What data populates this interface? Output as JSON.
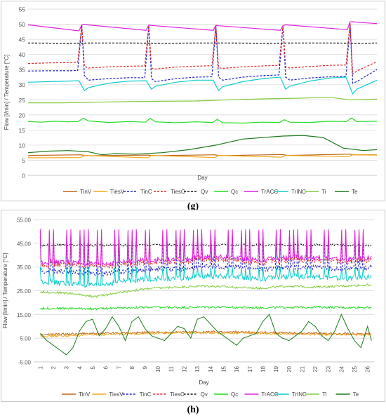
{
  "chart_data": [
    {
      "panel": "(g)",
      "type": "line",
      "xlabel": "Day",
      "ylabel": "Flow [l/min] / Temperature [°C]",
      "ylim": [
        0,
        55
      ],
      "yticks": [
        "0",
        "5",
        "10",
        "15",
        "20",
        "25",
        "30",
        "35",
        "40",
        "45",
        "50",
        "55"
      ],
      "xlim": [
        0,
        5.2
      ],
      "x_ticks_shown": false,
      "grid": "horizontal",
      "legend_position": "bottom",
      "series": [
        {
          "name": "TinV",
          "color": "#c0651c",
          "style": "solid",
          "x": [
            0,
            0.06,
            0.78,
            0.88,
            1.78,
            1.88,
            2.78,
            2.88,
            3.78,
            3.88,
            4.78,
            4.88,
            5.2
          ],
          "y": [
            6.5,
            6.6,
            6.8,
            6.5,
            6.7,
            6.5,
            6.8,
            6.5,
            6.9,
            6.6,
            7.0,
            6.8,
            6.8
          ]
        },
        {
          "name": "TiesV",
          "color": "#f2a81d",
          "style": "solid",
          "x": [
            0,
            0.05,
            0.78,
            0.84,
            1.78,
            1.84,
            2.78,
            2.84,
            3.78,
            3.84,
            4.78,
            4.84,
            5.2
          ],
          "y": [
            5.9,
            5.8,
            5.9,
            6.6,
            5.8,
            6.6,
            5.9,
            6.6,
            6.0,
            6.6,
            6.2,
            6.8,
            6.7
          ]
        },
        {
          "name": "TinC",
          "color": "#2020d0",
          "style": "dashed",
          "x": [
            0,
            0.3,
            0.6,
            0.74,
            0.8,
            0.84,
            0.9,
            1.2,
            1.5,
            1.74,
            1.8,
            1.84,
            1.9,
            2.2,
            2.5,
            2.74,
            2.8,
            2.84,
            2.9,
            3.2,
            3.5,
            3.74,
            3.8,
            3.84,
            3.9,
            4.2,
            4.5,
            4.74,
            4.8,
            4.84,
            4.9,
            5.2
          ],
          "y": [
            34.5,
            34.6,
            34.6,
            34.7,
            49.5,
            33.0,
            31.5,
            32.0,
            32.3,
            32.3,
            49.5,
            32.0,
            31.0,
            32.0,
            32.5,
            32.6,
            49.5,
            32.5,
            31.5,
            32.5,
            33.0,
            33.2,
            49.5,
            32.5,
            31.5,
            32.2,
            32.6,
            32.8,
            50.0,
            30.5,
            31.0,
            35.0
          ]
        },
        {
          "name": "TiesC",
          "color": "#e02828",
          "style": "dashed",
          "x": [
            0,
            0.3,
            0.6,
            0.74,
            0.8,
            0.84,
            0.9,
            1.2,
            1.5,
            1.74,
            1.8,
            1.84,
            1.9,
            2.2,
            2.5,
            2.74,
            2.8,
            2.84,
            2.9,
            3.2,
            3.5,
            3.74,
            3.8,
            3.84,
            3.9,
            4.2,
            4.5,
            4.74,
            4.8,
            4.84,
            4.9,
            5.2
          ],
          "y": [
            37.0,
            37.2,
            37.3,
            37.4,
            49.8,
            36.0,
            35.5,
            35.9,
            36.1,
            36.2,
            49.7,
            35.5,
            35.2,
            35.8,
            36.1,
            36.3,
            49.5,
            35.6,
            35.4,
            35.9,
            36.2,
            36.4,
            49.6,
            35.8,
            35.5,
            36.0,
            36.4,
            36.5,
            50.4,
            33.5,
            34.5,
            37.6
          ]
        },
        {
          "name": "Qv",
          "color": "#111111",
          "style": "dashed",
          "x": [
            0,
            0.5,
            1.0,
            1.5,
            2.0,
            2.5,
            3.0,
            3.5,
            4.0,
            4.5,
            5.0,
            5.2
          ],
          "y": [
            43.8,
            43.7,
            43.8,
            43.8,
            43.7,
            43.8,
            43.8,
            43.7,
            43.8,
            43.8,
            43.7,
            43.8
          ]
        },
        {
          "name": "Qc",
          "color": "#22dd22",
          "style": "solid",
          "x": [
            0,
            0.2,
            0.4,
            0.6,
            0.75,
            0.82,
            0.9,
            1.2,
            1.5,
            1.75,
            1.82,
            1.9,
            2.2,
            2.5,
            2.75,
            2.82,
            2.9,
            3.2,
            3.5,
            3.75,
            3.82,
            3.9,
            4.2,
            4.5,
            4.75,
            4.82,
            4.9,
            5.2
          ],
          "y": [
            17.8,
            17.6,
            17.9,
            17.7,
            17.8,
            18.9,
            18.0,
            17.5,
            17.8,
            17.6,
            18.9,
            17.7,
            17.4,
            17.7,
            17.5,
            18.5,
            17.4,
            17.3,
            17.6,
            17.5,
            18.4,
            17.6,
            17.5,
            17.9,
            17.8,
            19.0,
            17.8,
            17.9
          ]
        },
        {
          "name": "TrACC",
          "color": "#e020e0",
          "style": "solid",
          "x": [
            0,
            0.76,
            0.8,
            0.84,
            1.76,
            1.8,
            1.84,
            2.76,
            2.8,
            2.84,
            3.76,
            3.8,
            3.84,
            4.76,
            4.8,
            4.84,
            5.2
          ],
          "y": [
            49.8,
            47.8,
            49.8,
            49.9,
            48.0,
            49.7,
            49.6,
            48.0,
            49.6,
            49.5,
            48.0,
            49.5,
            49.8,
            48.2,
            50.8,
            50.8,
            50.2
          ]
        },
        {
          "name": "TrINC",
          "color": "#10cccc",
          "style": "solid",
          "x": [
            0,
            0.3,
            0.6,
            0.76,
            0.84,
            0.9,
            1.2,
            1.5,
            1.76,
            1.84,
            1.9,
            2.2,
            2.5,
            2.76,
            2.84,
            2.9,
            3.2,
            3.5,
            3.76,
            3.84,
            3.9,
            4.2,
            4.5,
            4.74,
            4.84,
            4.9,
            5.2
          ],
          "y": [
            30.8,
            31.0,
            31.2,
            31.3,
            28.0,
            29.0,
            30.5,
            31.2,
            31.3,
            28.5,
            29.5,
            30.8,
            31.5,
            31.5,
            28.0,
            29.3,
            31.0,
            32.0,
            32.5,
            28.5,
            29.5,
            31.2,
            32.2,
            32.5,
            27.0,
            28.5,
            31.5
          ]
        },
        {
          "name": "Ti",
          "color": "#82cc3c",
          "style": "solid",
          "x": [
            0,
            0.5,
            1.0,
            1.5,
            2.0,
            2.5,
            3.0,
            3.5,
            4.0,
            4.3,
            4.5,
            4.8,
            5.0,
            5.2
          ],
          "y": [
            24.0,
            24.0,
            24.2,
            24.4,
            24.5,
            24.6,
            25.0,
            25.3,
            25.5,
            25.7,
            25.8,
            25.0,
            25.1,
            25.2
          ]
        },
        {
          "name": "Te",
          "color": "#1f7a1f",
          "style": "solid",
          "x": [
            0,
            0.3,
            0.6,
            0.9,
            1.1,
            1.3,
            1.6,
            2.0,
            2.4,
            2.8,
            3.2,
            3.5,
            3.8,
            4.1,
            4.4,
            4.7,
            5.0,
            5.2
          ],
          "y": [
            7.5,
            8.0,
            8.2,
            7.8,
            6.8,
            7.2,
            7.0,
            7.5,
            8.5,
            10.0,
            12.0,
            12.5,
            13.0,
            13.2,
            12.5,
            9.0,
            8.2,
            8.5
          ]
        }
      ]
    },
    {
      "panel": "(h)",
      "type": "line",
      "xlabel": "Day",
      "ylabel": "Flow [l/min] / Temperature [°C]",
      "ylim": [
        -5,
        55
      ],
      "yticks": [
        "-5.00",
        "5.00",
        "15.00",
        "25.00",
        "35.00",
        "45.00",
        "55.00"
      ],
      "xlim": [
        0.5,
        26.5
      ],
      "categories": [
        "1",
        "2",
        "3",
        "4",
        "5",
        "6",
        "7",
        "8",
        "9",
        "10",
        "11",
        "12",
        "13",
        "14",
        "15",
        "16",
        "17",
        "18",
        "19",
        "20",
        "21",
        "22",
        "23",
        "24",
        "25",
        "26"
      ],
      "grid": "horizontal",
      "legend_position": "bottom",
      "series": [
        {
          "name": "TinV",
          "color": "#c0651c",
          "style": "solid",
          "level": [
            6.5,
            6.7,
            7.0,
            7.2,
            7.4,
            7.5,
            7.6,
            7.6,
            7.4,
            7.2,
            7.0,
            6.9,
            6.8
          ]
        },
        {
          "name": "TiesV",
          "color": "#f2a81d",
          "style": "solid",
          "level": [
            5.8,
            6.0,
            6.4,
            6.8,
            7.0,
            7.2,
            7.2,
            7.2,
            7.0,
            6.8,
            6.6,
            6.5,
            6.4
          ]
        },
        {
          "name": "TinC",
          "color": "#2020d0",
          "style": "dashed",
          "base": [
            33,
            33,
            32,
            33,
            34,
            34,
            35,
            35,
            34,
            35,
            35,
            34,
            35
          ],
          "peak": 48
        },
        {
          "name": "TiesC",
          "color": "#e02828",
          "style": "dashed",
          "base": [
            36,
            36,
            35,
            36,
            37,
            37,
            38,
            38,
            37,
            38,
            38,
            37,
            38
          ],
          "peak": 50
        },
        {
          "name": "Qv",
          "color": "#111111",
          "style": "dashed",
          "level": [
            44.2,
            44.2,
            44.1,
            44.2,
            44.3,
            44.2,
            44.2,
            44.3,
            44.2,
            44.2,
            44.3,
            44.2,
            44.2
          ]
        },
        {
          "name": "Qc",
          "color": "#22dd22",
          "style": "solid",
          "level": [
            17.5,
            17.6,
            17.4,
            17.8,
            18.0,
            17.9,
            18.1,
            18.0,
            17.8,
            18.0,
            18.1,
            17.9,
            18.0
          ]
        },
        {
          "name": "TrACC",
          "color": "#e020e0",
          "style": "solid",
          "base": [
            37,
            37,
            36,
            37,
            38,
            38,
            39,
            39,
            38,
            39,
            39,
            38,
            39
          ],
          "peak": 51
        },
        {
          "name": "TrINC",
          "color": "#10cccc",
          "style": "solid",
          "base": [
            29,
            28,
            27,
            29,
            30,
            30,
            31,
            31,
            30,
            31,
            31,
            30,
            31
          ],
          "peak": 35
        },
        {
          "name": "Ti",
          "color": "#82cc3c",
          "style": "solid",
          "level": [
            24.5,
            24.0,
            22.5,
            24.5,
            26.0,
            26.5,
            27.0,
            26.5,
            26.0,
            27.0,
            26.5,
            27.0,
            27.5
          ]
        },
        {
          "name": "Te",
          "color": "#1f7a1f",
          "style": "solid",
          "x": [
            1,
            1.5,
            2,
            2.5,
            3,
            3.5,
            4,
            4.5,
            5,
            5.5,
            6,
            6.5,
            7,
            7.5,
            8,
            8.5,
            9,
            9.5,
            10,
            10.5,
            11,
            11.5,
            12,
            12.5,
            13,
            13.5,
            14,
            14.5,
            15,
            15.5,
            16,
            16.5,
            17,
            17.5,
            18,
            18.5,
            19,
            19.5,
            20,
            20.5,
            21,
            21.5,
            22,
            22.5,
            23,
            23.5,
            24,
            24.5,
            25,
            25.5,
            26,
            26.3
          ],
          "y": [
            7,
            4,
            2,
            0,
            -2,
            1,
            8,
            12,
            13,
            6,
            9,
            14,
            10,
            4,
            12,
            14,
            9,
            6,
            5,
            4,
            7,
            10,
            9,
            5,
            13,
            14,
            11,
            8,
            6,
            4,
            2,
            5,
            6,
            7,
            12,
            15,
            7,
            5,
            4,
            6,
            8,
            12,
            10,
            6,
            4,
            8,
            15,
            9,
            4,
            1,
            10,
            4
          ]
        }
      ]
    }
  ],
  "legend": {
    "items": [
      {
        "label": "TinV",
        "color": "#c0651c",
        "style": "solid"
      },
      {
        "label": "TiesV",
        "color": "#f2a81d",
        "style": "solid"
      },
      {
        "label": "TinC",
        "color": "#2020d0",
        "style": "dashed"
      },
      {
        "label": "TiesC",
        "color": "#e02828",
        "style": "dashed"
      },
      {
        "label": "Qv",
        "color": "#111111",
        "style": "dashed"
      },
      {
        "label": "Qc",
        "color": "#22dd22",
        "style": "solid"
      },
      {
        "label": "TrACC",
        "color": "#e020e0",
        "style": "solid"
      },
      {
        "label": "TrINC",
        "color": "#10cccc",
        "style": "solid"
      },
      {
        "label": "Ti",
        "color": "#82cc3c",
        "style": "solid"
      },
      {
        "label": "Te",
        "color": "#1f7a1f",
        "style": "solid"
      }
    ]
  },
  "captions": {
    "g": "(g)",
    "h": "(h)"
  }
}
